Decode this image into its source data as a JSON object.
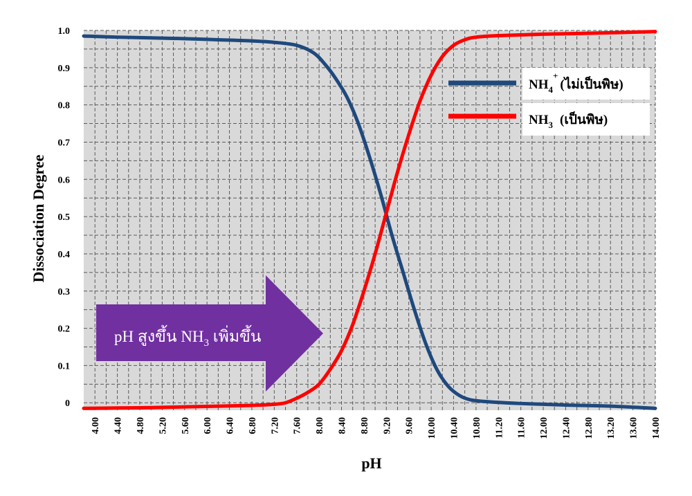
{
  "chart_data": {
    "type": "line",
    "xlabel": "pH",
    "ylabel": "Dissociation Degree",
    "xlim": [
      3.8,
      14.0
    ],
    "ylim": [
      -0.02,
      1.0
    ],
    "x_tick_labels": [
      "4.00",
      "4.40",
      "4.80",
      "5.20",
      "5.60",
      "6.00",
      "6.40",
      "6.80",
      "7.20",
      "7.60",
      "8.00",
      "8.40",
      "8.80",
      "9.20",
      "9.60",
      "10.00",
      "10.40",
      "10.80",
      "11.20",
      "11.60",
      "12.00",
      "12.40",
      "12.80",
      "13.20",
      "13.60",
      "14.00"
    ],
    "y_tick_labels": [
      {
        "value": 0.0,
        "label": "0"
      },
      {
        "value": 0.1,
        "label": "0.1"
      },
      {
        "value": 0.2,
        "label": "0.2"
      },
      {
        "value": 0.3,
        "label": "0.3"
      },
      {
        "value": 0.4,
        "label": "0.4"
      },
      {
        "value": 0.5,
        "label": "0.5"
      },
      {
        "value": 0.6,
        "label": "0.6"
      },
      {
        "value": 0.7,
        "label": "0.7"
      },
      {
        "value": 0.8,
        "label": "0.8"
      },
      {
        "value": 0.9,
        "label": "0.9"
      },
      {
        "value": 1.0,
        "label": "1.0"
      }
    ],
    "grid": true,
    "legend_position": "top-right",
    "series": [
      {
        "name_main": "NH",
        "name_sub": "4",
        "name_sup": "+",
        "name_note": "(ไม่เป็นพิษ)",
        "color": "#1f497d",
        "x": [
          3.8,
          4.4,
          5.0,
          5.6,
          6.2,
          6.8,
          7.2,
          7.6,
          7.9,
          8.1,
          8.3,
          8.5,
          8.7,
          8.9,
          9.1,
          9.3,
          9.5,
          9.7,
          9.9,
          10.1,
          10.3,
          10.5,
          10.7,
          11.0,
          11.6,
          12.4,
          13.2,
          14.0
        ],
        "y": [
          0.985,
          0.982,
          0.98,
          0.978,
          0.975,
          0.972,
          0.968,
          0.96,
          0.94,
          0.91,
          0.87,
          0.82,
          0.75,
          0.66,
          0.56,
          0.45,
          0.35,
          0.25,
          0.16,
          0.09,
          0.045,
          0.02,
          0.008,
          0.003,
          -0.002,
          -0.006,
          -0.009,
          -0.015
        ]
      },
      {
        "name_main": "NH",
        "name_sub": "3",
        "name_sup": "",
        "name_note": "(เป็นพิษ)",
        "color": "#ff0000",
        "x": [
          3.8,
          4.4,
          5.0,
          5.6,
          6.2,
          6.8,
          7.2,
          7.4,
          7.6,
          7.8,
          8.0,
          8.2,
          8.4,
          8.6,
          8.8,
          9.0,
          9.2,
          9.4,
          9.6,
          9.8,
          10.0,
          10.2,
          10.4,
          10.6,
          10.8,
          11.2,
          12.0,
          13.0,
          14.0
        ],
        "y": [
          -0.015,
          -0.014,
          -0.013,
          -0.011,
          -0.009,
          -0.007,
          -0.004,
          0.0,
          0.012,
          0.028,
          0.05,
          0.09,
          0.14,
          0.21,
          0.3,
          0.4,
          0.51,
          0.62,
          0.72,
          0.81,
          0.88,
          0.93,
          0.96,
          0.975,
          0.982,
          0.986,
          0.99,
          0.993,
          0.997
        ]
      }
    ],
    "annotation": {
      "text_main": "pH สูงขึ้น NH",
      "text_sub": "3",
      "text_tail": " เพิ่มขึ้น",
      "color": "#7030a0"
    },
    "colors": {
      "plot_background": "#d9d9d9",
      "grid": "#595959"
    }
  }
}
